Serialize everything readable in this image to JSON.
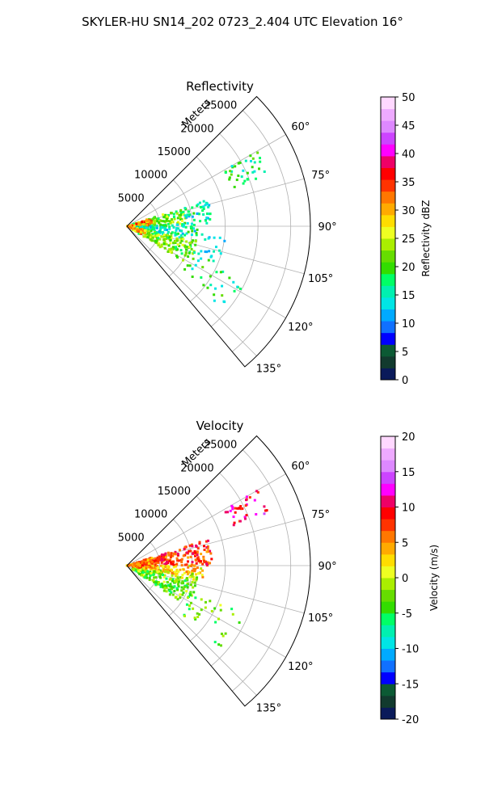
{
  "figure": {
    "suptitle": "SKYLER-HU  SN14_202  0723_2.404 UTC Elevation 16°"
  },
  "chart_data": [
    {
      "type": "polar",
      "title": "Reflectivity",
      "radial_label": "Meters",
      "radial_ticks": [
        5000,
        10000,
        15000,
        20000,
        25000
      ],
      "radial_range": [
        0,
        28000
      ],
      "theta_ticks_deg": [
        60,
        75,
        90,
        105,
        120,
        135
      ],
      "theta_range_deg": [
        45,
        140
      ],
      "grid": true,
      "colorbar": {
        "label": "Reflectivity dBZ",
        "range": [
          0,
          50
        ],
        "ticks": [
          0,
          5,
          10,
          15,
          20,
          25,
          30,
          35,
          40,
          45,
          50
        ],
        "colors": [
          "#0a1a5a",
          "#123a2e",
          "#0c5a34",
          "#0000ff",
          "#1070ff",
          "#00aaff",
          "#00e5e5",
          "#00f0b0",
          "#00ff66",
          "#33dd00",
          "#66dd00",
          "#aaee00",
          "#eeff22",
          "#ffdd00",
          "#ffaa00",
          "#ff7700",
          "#ff3300",
          "#ff0000",
          "#ee0066",
          "#ff00ff",
          "#cc44ff",
          "#dd88ff",
          "#eeaaff",
          "#ffd8ff"
        ]
      },
      "echo_regions": [
        {
          "az": [
            60,
            70
          ],
          "r": [
            17000,
            23000
          ],
          "value": 18,
          "density": 0.5
        },
        {
          "az": [
            72,
            88
          ],
          "r": [
            1000,
            9000
          ],
          "value": 22,
          "density": 0.8
        },
        {
          "az": [
            72,
            88
          ],
          "r": [
            9000,
            13000
          ],
          "value": 15,
          "density": 0.6
        },
        {
          "az": [
            88,
            102
          ],
          "r": [
            1000,
            11000
          ],
          "value": 16,
          "density": 0.7
        },
        {
          "az": [
            102,
            122
          ],
          "r": [
            1000,
            11000
          ],
          "value": 22,
          "density": 0.8
        },
        {
          "az": [
            112,
            132
          ],
          "r": [
            11000,
            20000
          ],
          "value": 17,
          "density": 0.15
        },
        {
          "az": [
            95,
            112
          ],
          "r": [
            11000,
            16000
          ],
          "value": 15,
          "density": 0.2
        },
        {
          "az": [
            70,
            88
          ],
          "r": [
            0,
            4000
          ],
          "value": 32,
          "density": 0.4
        },
        {
          "az": [
            100,
            118
          ],
          "r": [
            0,
            3000
          ],
          "value": 30,
          "density": 0.5
        }
      ]
    },
    {
      "type": "polar",
      "title": "Velocity",
      "radial_label": "Meters",
      "radial_ticks": [
        5000,
        10000,
        15000,
        20000,
        25000
      ],
      "radial_range": [
        0,
        28000
      ],
      "theta_ticks_deg": [
        60,
        75,
        90,
        105,
        120,
        135
      ],
      "theta_range_deg": [
        45,
        140
      ],
      "grid": true,
      "colorbar": {
        "label": "Velocity (m/s)",
        "range": [
          -20,
          20
        ],
        "ticks": [
          -20,
          -15,
          -10,
          -5,
          0,
          5,
          10,
          15,
          20
        ],
        "colors": [
          "#0a1a5a",
          "#123a2e",
          "#0c5a34",
          "#0000ff",
          "#1070ff",
          "#00aaff",
          "#00e5e5",
          "#00f0b0",
          "#00ff66",
          "#33dd00",
          "#66dd00",
          "#aaee00",
          "#eeff22",
          "#ffdd00",
          "#ffaa00",
          "#ff7700",
          "#ff3300",
          "#ff0000",
          "#ee0066",
          "#ff00ff",
          "#cc44ff",
          "#dd88ff",
          "#eeaaff",
          "#ffd8ff"
        ]
      },
      "echo_regions": [
        {
          "az": [
            60,
            70
          ],
          "r": [
            17000,
            23000
          ],
          "value": 10,
          "density": 0.5
        },
        {
          "az": [
            72,
            90
          ],
          "r": [
            1000,
            13000
          ],
          "value": 8,
          "density": 0.85
        },
        {
          "az": [
            90,
            100
          ],
          "r": [
            1000,
            12000
          ],
          "value": 3,
          "density": 0.7
        },
        {
          "az": [
            96,
            104
          ],
          "r": [
            4000,
            11000
          ],
          "value": 0,
          "density": 0.6
        },
        {
          "az": [
            104,
            124
          ],
          "r": [
            1000,
            11000
          ],
          "value": -3,
          "density": 0.8
        },
        {
          "az": [
            112,
            132
          ],
          "r": [
            11000,
            20000
          ],
          "value": -3,
          "density": 0.15
        },
        {
          "az": [
            72,
            100
          ],
          "r": [
            0,
            4000
          ],
          "value": 5,
          "density": 0.5
        }
      ]
    }
  ]
}
